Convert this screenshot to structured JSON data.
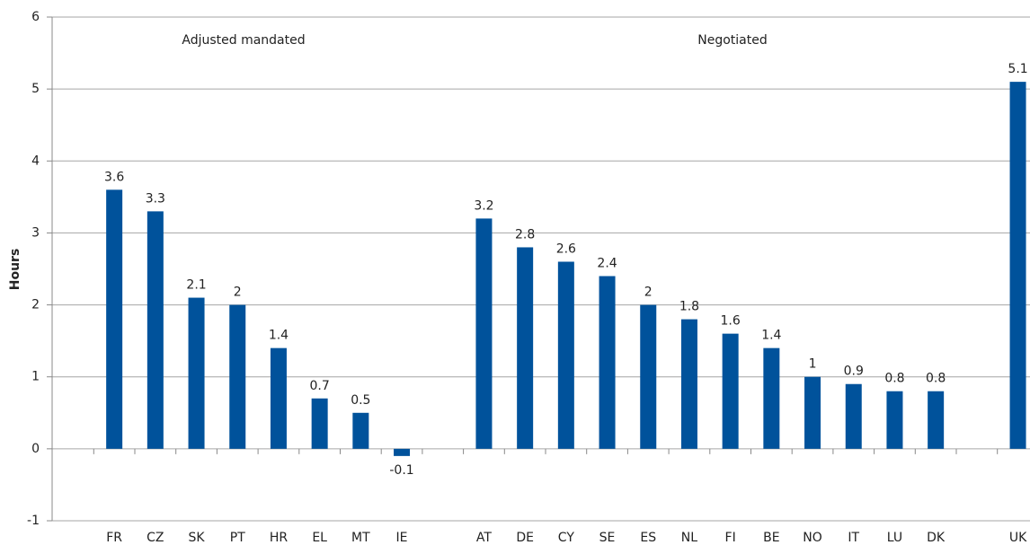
{
  "chart_data": {
    "type": "bar",
    "y_label": "Hours",
    "annotations": [
      "Adjusted mandated",
      "Negotiated"
    ],
    "categories": [
      "FR",
      "CZ",
      "SK",
      "PT",
      "HR",
      "EL",
      "MT",
      "IE",
      null,
      "AT",
      "DE",
      "CY",
      "SE",
      "ES",
      "NL",
      "FI",
      "BE",
      "NO",
      "IT",
      "LU",
      "DK",
      null,
      "UK"
    ],
    "values": [
      3.6,
      3.3,
      2.1,
      2,
      1.4,
      0.7,
      0.5,
      -0.1,
      null,
      3.2,
      2.8,
      2.6,
      2.4,
      2,
      1.8,
      1.6,
      1.4,
      1,
      0.9,
      0.8,
      0.8,
      null,
      5.1
    ],
    "color": "#00529b",
    "ylim": [
      -1,
      6
    ],
    "yticks": [
      -1,
      0,
      1,
      2,
      3,
      4,
      5,
      6
    ],
    "grid": true
  }
}
